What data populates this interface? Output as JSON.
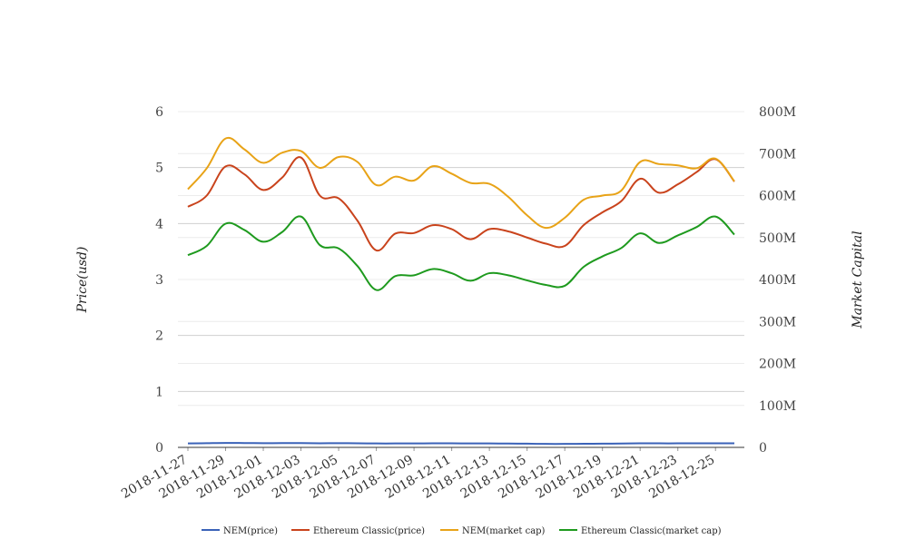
{
  "chart_data": {
    "type": "line",
    "title": "",
    "x": [
      "2018-11-27",
      "2018-11-28",
      "2018-11-29",
      "2018-11-30",
      "2018-12-01",
      "2018-12-02",
      "2018-12-03",
      "2018-12-04",
      "2018-12-05",
      "2018-12-06",
      "2018-12-07",
      "2018-12-08",
      "2018-12-09",
      "2018-12-10",
      "2018-12-11",
      "2018-12-12",
      "2018-12-13",
      "2018-12-14",
      "2018-12-15",
      "2018-12-16",
      "2018-12-17",
      "2018-12-18",
      "2018-12-19",
      "2018-12-20",
      "2018-12-21",
      "2018-12-22",
      "2018-12-23",
      "2018-12-24",
      "2018-12-25",
      "2018-12-26"
    ],
    "x_ticks": [
      "2018-11-27",
      "2018-11-29",
      "2018-12-01",
      "2018-12-03",
      "2018-12-05",
      "2018-12-07",
      "2018-12-09",
      "2018-12-11",
      "2018-12-13",
      "2018-12-15",
      "2018-12-17",
      "2018-12-19",
      "2018-12-21",
      "2018-12-23",
      "2018-12-25"
    ],
    "y_left": {
      "label": "Price(usd)",
      "ylim": [
        0,
        6
      ],
      "ticks": [
        "0",
        "1",
        "2",
        "3",
        "4",
        "5",
        "6"
      ]
    },
    "y_right": {
      "label": "Market Capital",
      "ylim": [
        0,
        800000000
      ],
      "ticks": [
        "0",
        "100M",
        "200M",
        "300M",
        "400M",
        "500M",
        "600M",
        "700M",
        "800M"
      ]
    },
    "grid": true,
    "legend_position": "bottom",
    "series": [
      {
        "name": "NEM(price)",
        "axis": "left",
        "color": "#3a62b8",
        "values": [
          0.07,
          0.075,
          0.08,
          0.078,
          0.075,
          0.076,
          0.077,
          0.074,
          0.075,
          0.074,
          0.07,
          0.07,
          0.071,
          0.072,
          0.072,
          0.071,
          0.07,
          0.068,
          0.066,
          0.062,
          0.062,
          0.064,
          0.066,
          0.068,
          0.072,
          0.072,
          0.072,
          0.073,
          0.074,
          0.072
        ]
      },
      {
        "name": "Ethereum Classic(price)",
        "axis": "left",
        "color": "#c9431c",
        "values": [
          4.3,
          4.5,
          5.02,
          4.88,
          4.6,
          4.82,
          5.18,
          4.5,
          4.45,
          4.05,
          3.52,
          3.82,
          3.83,
          3.97,
          3.9,
          3.72,
          3.9,
          3.86,
          3.75,
          3.64,
          3.6,
          3.97,
          4.2,
          4.4,
          4.8,
          4.55,
          4.7,
          4.92,
          5.15,
          4.75
        ]
      },
      {
        "name": "NEM(market cap)",
        "axis": "right",
        "color": "#e8a317",
        "values": [
          615000000,
          665000000,
          736000000,
          710000000,
          678000000,
          702000000,
          706000000,
          666000000,
          692000000,
          680000000,
          625000000,
          645000000,
          636000000,
          670000000,
          652000000,
          630000000,
          628000000,
          597000000,
          553000000,
          523000000,
          547000000,
          590000000,
          600000000,
          612000000,
          680000000,
          675000000,
          672000000,
          665000000,
          688000000,
          634000000
        ]
      },
      {
        "name": "Ethereum Classic(market cap)",
        "axis": "right",
        "color": "#1e9a1e",
        "values": [
          458000000,
          480000000,
          533000000,
          518000000,
          490000000,
          513000000,
          550000000,
          482000000,
          474000000,
          432000000,
          375000000,
          408000000,
          410000000,
          425000000,
          415000000,
          397000000,
          415000000,
          410000000,
          398000000,
          387000000,
          385000000,
          430000000,
          455000000,
          475000000,
          510000000,
          487000000,
          505000000,
          525000000,
          550000000,
          507000000
        ]
      }
    ]
  }
}
